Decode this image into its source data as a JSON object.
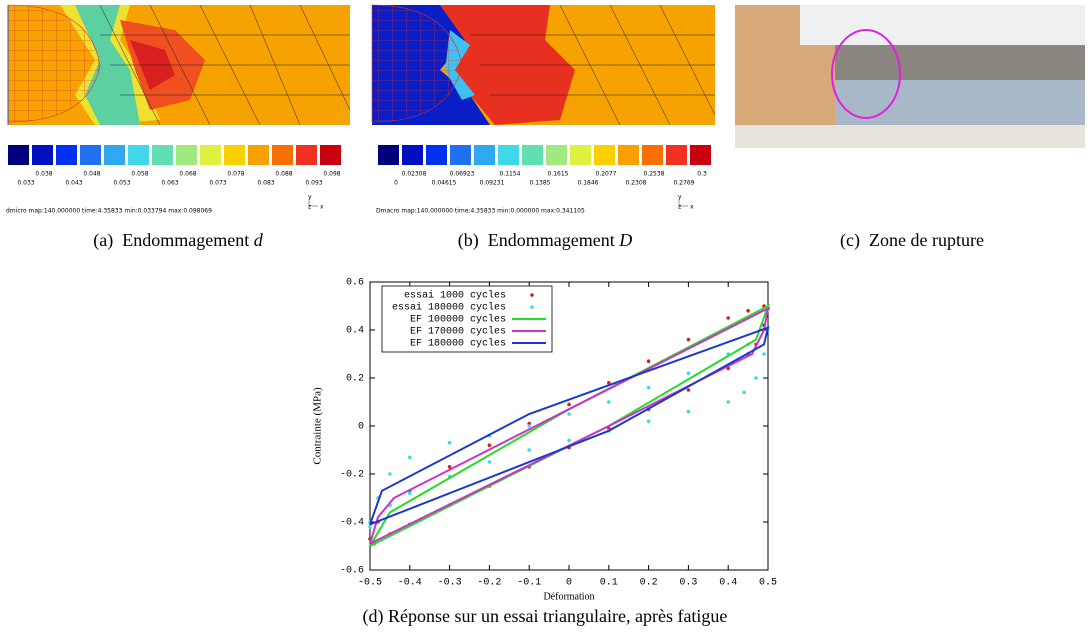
{
  "panels": [
    {
      "caption": {
        "label": "(a)",
        "text": "Endommagement",
        "symbol": "d"
      },
      "colorbar": {
        "top": [
          "0.038",
          "0.048",
          "0.058",
          "0.068",
          "0.078",
          "0.088",
          "0.098"
        ],
        "bottom": [
          "0.033",
          "0.043",
          "0.053",
          "0.063",
          "0.073",
          "0.083",
          "0.093"
        ]
      },
      "status": "dmicro   map:140.000000 time:4.35833  min:0.033794 max:0.098069",
      "axis_letters": [
        "y",
        "z",
        "x"
      ]
    },
    {
      "caption": {
        "label": "(b)",
        "text": "Endommagement",
        "symbol": "D"
      },
      "colorbar": {
        "top": [
          "0.02308",
          "0.06923",
          "0.1154",
          "0.1615",
          "0.2077",
          "0.2538",
          "0.3"
        ],
        "bottom": [
          "0",
          "0.04615",
          "0.09231",
          "0.1385",
          "0.1846",
          "0.2308",
          "0.2769"
        ]
      },
      "status": "Dmacro   map:140.000000 time:4.35833  min:0.000000 max:0.341105",
      "axis_letters": [
        "y",
        "z",
        "x"
      ]
    },
    {
      "caption": {
        "label": "(c)",
        "text": "Zone de rupture"
      }
    }
  ],
  "chart_data": {
    "type": "line",
    "caption": "(d) Réponse sur un essai triangulaire, après fatigue",
    "xlabel": "Déformation",
    "ylabel": "Contrainte (MPa)",
    "xlim": [
      -0.5,
      0.5
    ],
    "ylim": [
      -0.6,
      0.6
    ],
    "xticks": [
      -0.5,
      -0.4,
      -0.3,
      -0.2,
      -0.1,
      0,
      0.1,
      0.2,
      0.3,
      0.4,
      0.5
    ],
    "yticks": [
      -0.6,
      -0.4,
      -0.2,
      0,
      0.2,
      0.4,
      0.6
    ],
    "legend": "top-left",
    "series": [
      {
        "name": "essai 1000 cycles",
        "color": "#d62020",
        "style": "points",
        "x": [
          -0.5,
          -0.48,
          -0.45,
          -0.4,
          -0.3,
          -0.2,
          -0.1,
          0,
          0.1,
          0.2,
          0.3,
          0.4,
          0.45,
          0.49,
          0.5,
          0.49,
          0.47,
          0.45,
          0.4,
          0.3,
          0.2,
          0.1,
          0,
          -0.1,
          -0.2,
          -0.3,
          -0.4,
          -0.45,
          -0.49
        ],
        "y": [
          -0.47,
          -0.4,
          -0.33,
          -0.27,
          -0.17,
          -0.08,
          0.01,
          0.09,
          0.18,
          0.27,
          0.36,
          0.45,
          0.48,
          0.5,
          0.49,
          0.42,
          0.34,
          0.3,
          0.24,
          0.15,
          0.07,
          -0.01,
          -0.09,
          -0.17,
          -0.25,
          -0.33,
          -0.41,
          -0.45,
          -0.49
        ]
      },
      {
        "name": "essai 180000 cycles",
        "color": "#33e0e8",
        "style": "points",
        "x": [
          -0.5,
          -0.48,
          -0.45,
          -0.4,
          -0.3,
          -0.2,
          -0.1,
          0,
          0.1,
          0.2,
          0.3,
          0.4,
          0.45,
          0.5,
          0.49,
          0.47,
          0.44,
          0.4,
          0.3,
          0.2,
          0.1,
          0,
          -0.1,
          -0.2,
          -0.3,
          -0.4,
          -0.45,
          -0.5
        ],
        "y": [
          -0.42,
          -0.3,
          -0.2,
          -0.13,
          -0.07,
          -0.04,
          0,
          0.05,
          0.1,
          0.16,
          0.22,
          0.3,
          0.34,
          0.4,
          0.3,
          0.2,
          0.14,
          0.1,
          0.06,
          0.02,
          -0.02,
          -0.06,
          -0.1,
          -0.15,
          -0.21,
          -0.28,
          -0.33,
          -0.4
        ]
      },
      {
        "name": "EF 100000 cycles",
        "color": "#22dd22",
        "style": "line",
        "x": [
          -0.5,
          -0.45,
          0,
          0.5,
          0.47,
          0.1,
          -0.5
        ],
        "y": [
          -0.5,
          -0.36,
          0.07,
          0.5,
          0.36,
          0,
          -0.5
        ]
      },
      {
        "name": "EF 170000 cycles",
        "color": "#cc33cc",
        "style": "line",
        "x": [
          -0.5,
          -0.48,
          -0.44,
          0,
          0.5,
          0.49,
          0.46,
          0.1,
          -0.5
        ],
        "y": [
          -0.49,
          -0.38,
          -0.3,
          0.07,
          0.49,
          0.4,
          0.3,
          0,
          -0.49
        ]
      },
      {
        "name": "EF 180000 cycles",
        "color": "#1a3acc",
        "style": "line",
        "x": [
          -0.5,
          -0.47,
          -0.1,
          0.5,
          0.49,
          0.1,
          -0.5
        ],
        "y": [
          -0.41,
          -0.27,
          0.05,
          0.41,
          0.34,
          -0.02,
          -0.41
        ]
      }
    ]
  }
}
